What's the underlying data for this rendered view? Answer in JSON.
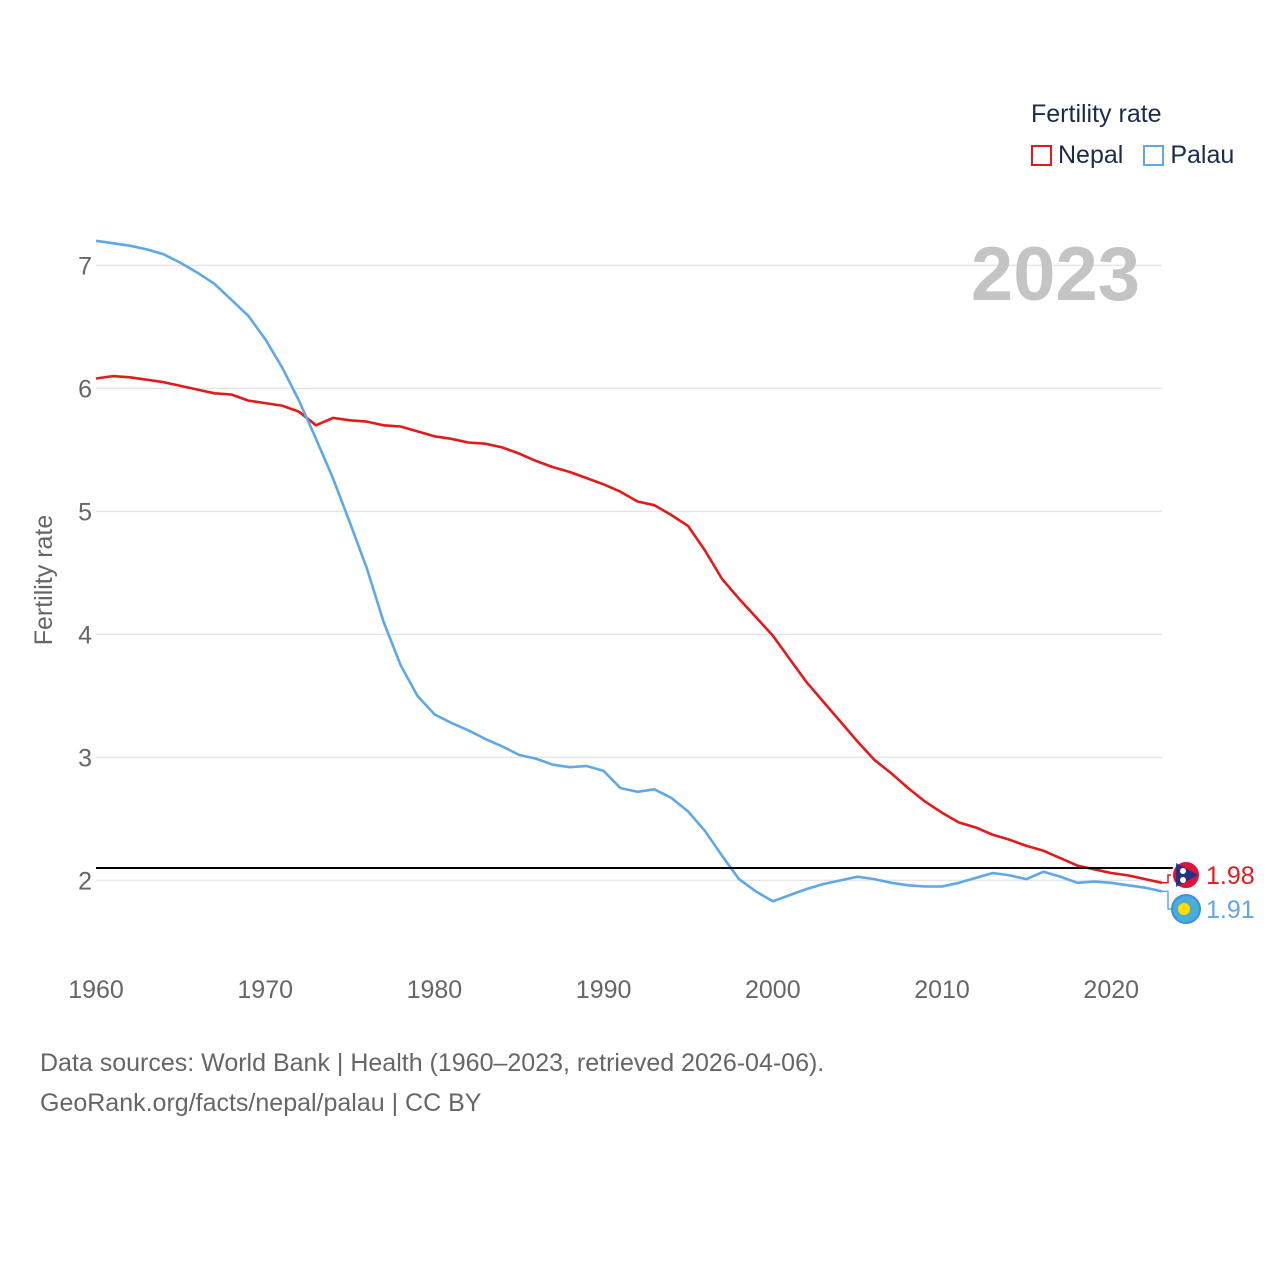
{
  "chart_data": {
    "type": "line",
    "title": "Fertility rate",
    "ylabel": "Fertility rate",
    "xlabel": "",
    "year_label": "2023",
    "xlim": [
      1960,
      2023
    ],
    "ylim": [
      1.45,
      7.45
    ],
    "x_ticks": [
      1960,
      1970,
      1980,
      1990,
      2000,
      2010,
      2020
    ],
    "y_ticks": [
      2,
      3,
      4,
      5,
      6,
      7
    ],
    "reference_line": 2.1,
    "x": [
      1960,
      1961,
      1962,
      1963,
      1964,
      1965,
      1966,
      1967,
      1968,
      1969,
      1970,
      1971,
      1972,
      1973,
      1974,
      1975,
      1976,
      1977,
      1978,
      1979,
      1980,
      1981,
      1982,
      1983,
      1984,
      1985,
      1986,
      1987,
      1988,
      1989,
      1990,
      1991,
      1992,
      1993,
      1994,
      1995,
      1996,
      1997,
      1998,
      1999,
      2000,
      2001,
      2002,
      2003,
      2004,
      2005,
      2006,
      2007,
      2008,
      2009,
      2010,
      2011,
      2012,
      2013,
      2014,
      2015,
      2016,
      2017,
      2018,
      2019,
      2020,
      2021,
      2022,
      2023
    ],
    "series": [
      {
        "name": "Nepal",
        "color": "#e31a1c",
        "end_label": "1.98",
        "values": [
          6.08,
          6.1,
          6.09,
          6.07,
          6.05,
          6.02,
          5.99,
          5.96,
          5.95,
          5.9,
          5.88,
          5.86,
          5.81,
          5.7,
          5.76,
          5.74,
          5.73,
          5.7,
          5.69,
          5.65,
          5.61,
          5.59,
          5.56,
          5.55,
          5.52,
          5.47,
          5.41,
          5.36,
          5.32,
          5.27,
          5.22,
          5.16,
          5.08,
          5.05,
          4.97,
          4.88,
          4.68,
          4.45,
          4.29,
          4.14,
          3.99,
          3.8,
          3.61,
          3.45,
          3.29,
          3.13,
          2.98,
          2.87,
          2.75,
          2.64,
          2.55,
          2.47,
          2.43,
          2.37,
          2.33,
          2.28,
          2.24,
          2.18,
          2.12,
          2.09,
          2.06,
          2.04,
          2.01,
          1.98
        ]
      },
      {
        "name": "Palau",
        "color": "#5fa8e8",
        "end_label": "1.91",
        "values": [
          7.2,
          7.18,
          7.16,
          7.13,
          7.09,
          7.02,
          6.94,
          6.85,
          6.72,
          6.59,
          6.4,
          6.17,
          5.9,
          5.59,
          5.27,
          4.91,
          4.54,
          4.1,
          3.75,
          3.5,
          3.35,
          3.28,
          3.22,
          3.15,
          3.09,
          3.02,
          2.99,
          2.94,
          2.92,
          2.93,
          2.89,
          2.75,
          2.72,
          2.74,
          2.67,
          2.56,
          2.4,
          2.2,
          2.01,
          1.91,
          1.83,
          1.88,
          1.93,
          1.97,
          2.0,
          2.03,
          2.01,
          1.98,
          1.96,
          1.95,
          1.95,
          1.98,
          2.02,
          2.06,
          2.04,
          2.01,
          2.07,
          2.03,
          1.98,
          1.99,
          1.98,
          1.96,
          1.94,
          1.91
        ]
      }
    ]
  },
  "legend": {
    "title": "Fertility rate",
    "items": [
      {
        "label": "Nepal",
        "color": "#e31a1c"
      },
      {
        "label": "Palau",
        "color": "#5fa8e8"
      }
    ]
  },
  "source": {
    "line1": "Data sources: World Bank | Health (1960–2023, retrieved 2026-04-06).",
    "line2": "GeoRank.org/facts/nepal/palau | CC BY"
  }
}
